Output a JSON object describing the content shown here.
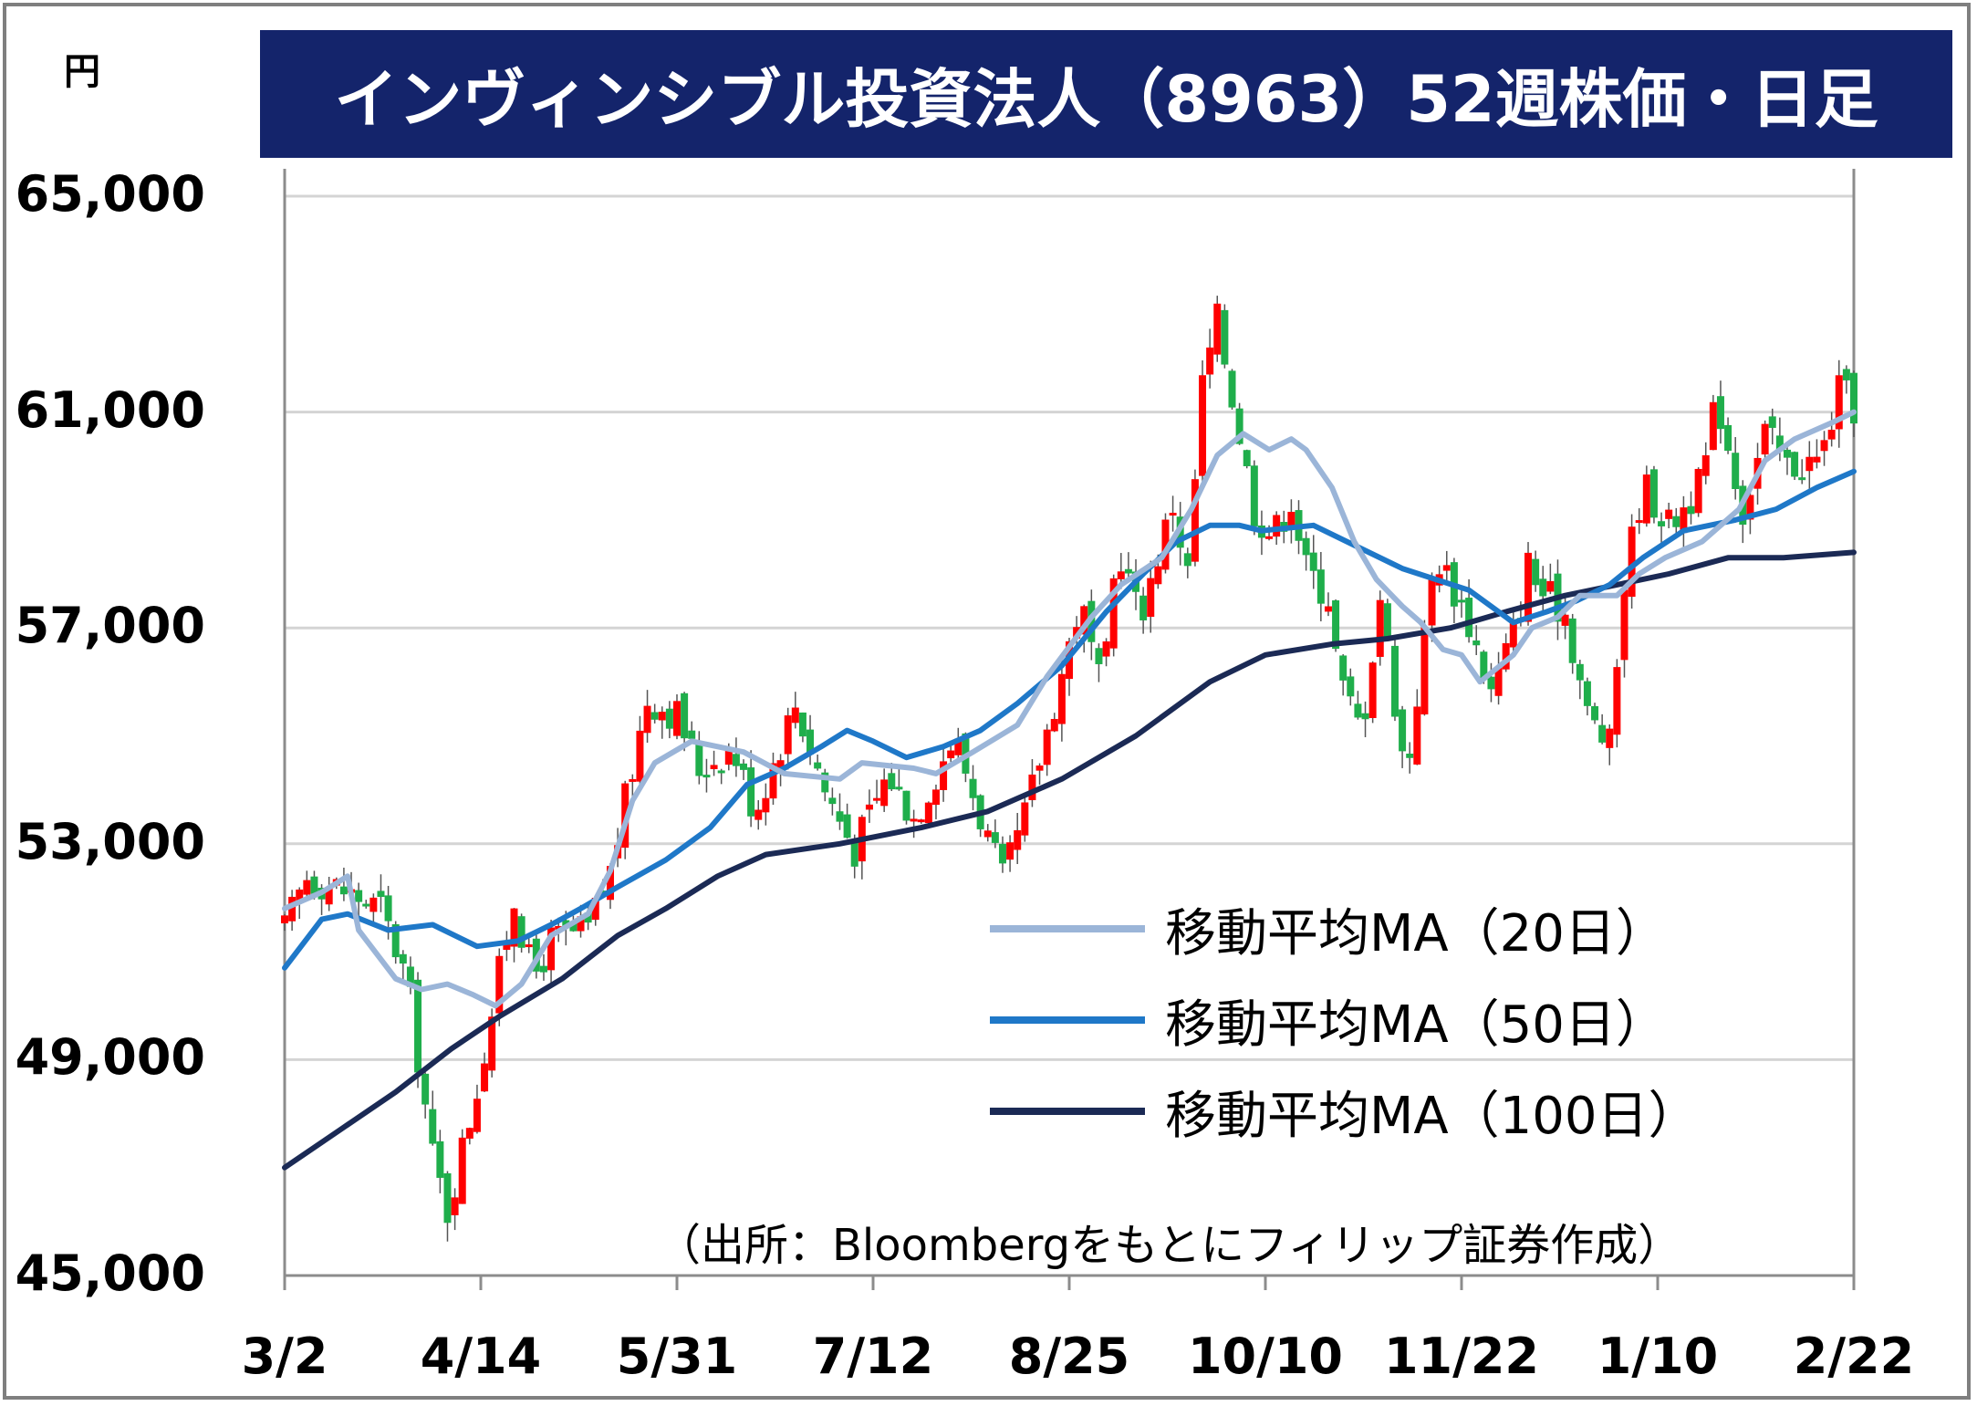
{
  "chart_data": {
    "type": "candlestick",
    "title": "インヴィンシブル投資法人（8963）52週株価・日足",
    "ylabel": "円",
    "ylim": [
      45000,
      65000
    ],
    "yticks": [
      "65,000",
      "61,000",
      "57,000",
      "53,000",
      "49,000",
      "45,000"
    ],
    "ytick_values": [
      65000,
      61000,
      57000,
      53000,
      49000,
      45000
    ],
    "xticks": [
      "3/2",
      "4/14",
      "5/31",
      "7/12",
      "8/25",
      "10/10",
      "11/22",
      "1/10",
      "2/22"
    ],
    "grid": true,
    "legend_position": "bottom-right",
    "colors": {
      "up": "#ff0000",
      "down": "#1fae4b",
      "ma20": "#9bb5d8",
      "ma50": "#1f78c8",
      "ma100": "#1b2a55",
      "title_bg": "#14246b"
    },
    "price_path": [
      [
        0,
        51400
      ],
      [
        6,
        52400
      ],
      [
        14,
        52200
      ],
      [
        26,
        51800
      ],
      [
        33,
        50500
      ],
      [
        40,
        47200
      ],
      [
        44,
        46200
      ],
      [
        52,
        48500
      ],
      [
        62,
        52000
      ],
      [
        67,
        50500
      ],
      [
        72,
        51200
      ],
      [
        82,
        51400
      ],
      [
        88,
        52500
      ],
      [
        98,
        55700
      ],
      [
        106,
        55400
      ],
      [
        112,
        54400
      ],
      [
        121,
        54800
      ],
      [
        127,
        53600
      ],
      [
        138,
        55600
      ],
      [
        146,
        54000
      ],
      [
        154,
        52900
      ],
      [
        163,
        54300
      ],
      [
        170,
        53500
      ],
      [
        181,
        55000
      ],
      [
        189,
        53300
      ],
      [
        194,
        52300
      ],
      [
        200,
        53500
      ],
      [
        206,
        55100
      ],
      [
        215,
        57500
      ],
      [
        221,
        55700
      ],
      [
        225,
        58600
      ],
      [
        231,
        57200
      ],
      [
        240,
        59300
      ],
      [
        244,
        58000
      ],
      [
        248,
        61500
      ],
      [
        252,
        62700
      ],
      [
        262,
        59200
      ],
      [
        267,
        58700
      ],
      [
        272,
        59400
      ],
      [
        276,
        58100
      ],
      [
        282,
        57600
      ],
      [
        285,
        56000
      ],
      [
        291,
        55100
      ],
      [
        296,
        57600
      ],
      [
        303,
        54200
      ],
      [
        311,
        58400
      ],
      [
        319,
        57300
      ],
      [
        326,
        55800
      ],
      [
        333,
        57100
      ],
      [
        336,
        58200
      ],
      [
        339,
        57700
      ],
      [
        346,
        57300
      ],
      [
        352,
        55400
      ],
      [
        358,
        54800
      ],
      [
        362,
        57900
      ],
      [
        367,
        59700
      ],
      [
        374,
        58900
      ],
      [
        383,
        59700
      ],
      [
        387,
        61300
      ],
      [
        394,
        59200
      ],
      [
        400,
        60600
      ],
      [
        406,
        60000
      ],
      [
        415,
        60100
      ],
      [
        420,
        61400
      ],
      [
        424,
        61100
      ]
    ],
    "ma20": [
      [
        0,
        51800
      ],
      [
        10,
        52100
      ],
      [
        17,
        52400
      ],
      [
        20,
        51400
      ],
      [
        30,
        50500
      ],
      [
        37,
        50300
      ],
      [
        44,
        50400
      ],
      [
        51,
        50200
      ],
      [
        57,
        50000
      ],
      [
        64,
        50400
      ],
      [
        72,
        51300
      ],
      [
        82,
        51700
      ],
      [
        88,
        52500
      ],
      [
        94,
        53800
      ],
      [
        100,
        54500
      ],
      [
        110,
        54900
      ],
      [
        124,
        54700
      ],
      [
        135,
        54300
      ],
      [
        150,
        54200
      ],
      [
        156,
        54500
      ],
      [
        170,
        54400
      ],
      [
        176,
        54300
      ],
      [
        186,
        54700
      ],
      [
        198,
        55200
      ],
      [
        206,
        56100
      ],
      [
        218,
        57200
      ],
      [
        226,
        57800
      ],
      [
        237,
        58300
      ],
      [
        245,
        59200
      ],
      [
        252,
        60200
      ],
      [
        259,
        60600
      ],
      [
        266,
        60300
      ],
      [
        272,
        60500
      ],
      [
        276,
        60300
      ],
      [
        283,
        59600
      ],
      [
        289,
        58600
      ],
      [
        295,
        57900
      ],
      [
        302,
        57400
      ],
      [
        307,
        57100
      ],
      [
        313,
        56600
      ],
      [
        318,
        56500
      ],
      [
        323,
        56000
      ],
      [
        332,
        56500
      ],
      [
        337,
        57000
      ],
      [
        344,
        57200
      ],
      [
        350,
        57600
      ],
      [
        360,
        57600
      ],
      [
        366,
        58000
      ],
      [
        373,
        58300
      ],
      [
        383,
        58600
      ],
      [
        393,
        59200
      ],
      [
        400,
        60100
      ],
      [
        408,
        60500
      ],
      [
        418,
        60800
      ],
      [
        424,
        61000
      ]
    ],
    "ma50": [
      [
        0,
        50700
      ],
      [
        10,
        51600
      ],
      [
        17,
        51700
      ],
      [
        28,
        51400
      ],
      [
        40,
        51500
      ],
      [
        52,
        51100
      ],
      [
        63,
        51200
      ],
      [
        72,
        51500
      ],
      [
        80,
        51800
      ],
      [
        90,
        52200
      ],
      [
        103,
        52700
      ],
      [
        115,
        53300
      ],
      [
        125,
        54100
      ],
      [
        135,
        54400
      ],
      [
        145,
        54800
      ],
      [
        152,
        55100
      ],
      [
        159,
        54900
      ],
      [
        168,
        54600
      ],
      [
        178,
        54800
      ],
      [
        188,
        55100
      ],
      [
        198,
        55600
      ],
      [
        210,
        56300
      ],
      [
        222,
        57300
      ],
      [
        232,
        58000
      ],
      [
        241,
        58600
      ],
      [
        250,
        58900
      ],
      [
        258,
        58900
      ],
      [
        264,
        58800
      ],
      [
        278,
        58900
      ],
      [
        290,
        58500
      ],
      [
        302,
        58100
      ],
      [
        311,
        57900
      ],
      [
        320,
        57700
      ],
      [
        332,
        57100
      ],
      [
        341,
        57300
      ],
      [
        349,
        57500
      ],
      [
        358,
        57800
      ],
      [
        367,
        58300
      ],
      [
        378,
        58800
      ],
      [
        392,
        59000
      ],
      [
        403,
        59200
      ],
      [
        414,
        59600
      ],
      [
        424,
        59900
      ]
    ],
    "ma100": [
      [
        0,
        47000
      ],
      [
        15,
        47700
      ],
      [
        30,
        48400
      ],
      [
        45,
        49200
      ],
      [
        58,
        49800
      ],
      [
        75,
        50500
      ],
      [
        90,
        51300
      ],
      [
        103,
        51800
      ],
      [
        117,
        52400
      ],
      [
        130,
        52800
      ],
      [
        150,
        53000
      ],
      [
        172,
        53300
      ],
      [
        190,
        53600
      ],
      [
        210,
        54200
      ],
      [
        230,
        55000
      ],
      [
        250,
        56000
      ],
      [
        265,
        56500
      ],
      [
        283,
        56700
      ],
      [
        298,
        56800
      ],
      [
        315,
        57000
      ],
      [
        330,
        57300
      ],
      [
        346,
        57600
      ],
      [
        360,
        57800
      ],
      [
        374,
        58000
      ],
      [
        390,
        58300
      ],
      [
        405,
        58300
      ],
      [
        424,
        58400
      ]
    ],
    "series": [
      {
        "name": "移動平均MA（20日）"
      },
      {
        "name": "移動平均MA（50日）"
      },
      {
        "name": "移動平均MA（100日）"
      }
    ],
    "annotation": "（出所：Bloombergをもとにフィリップ証券作成）"
  }
}
